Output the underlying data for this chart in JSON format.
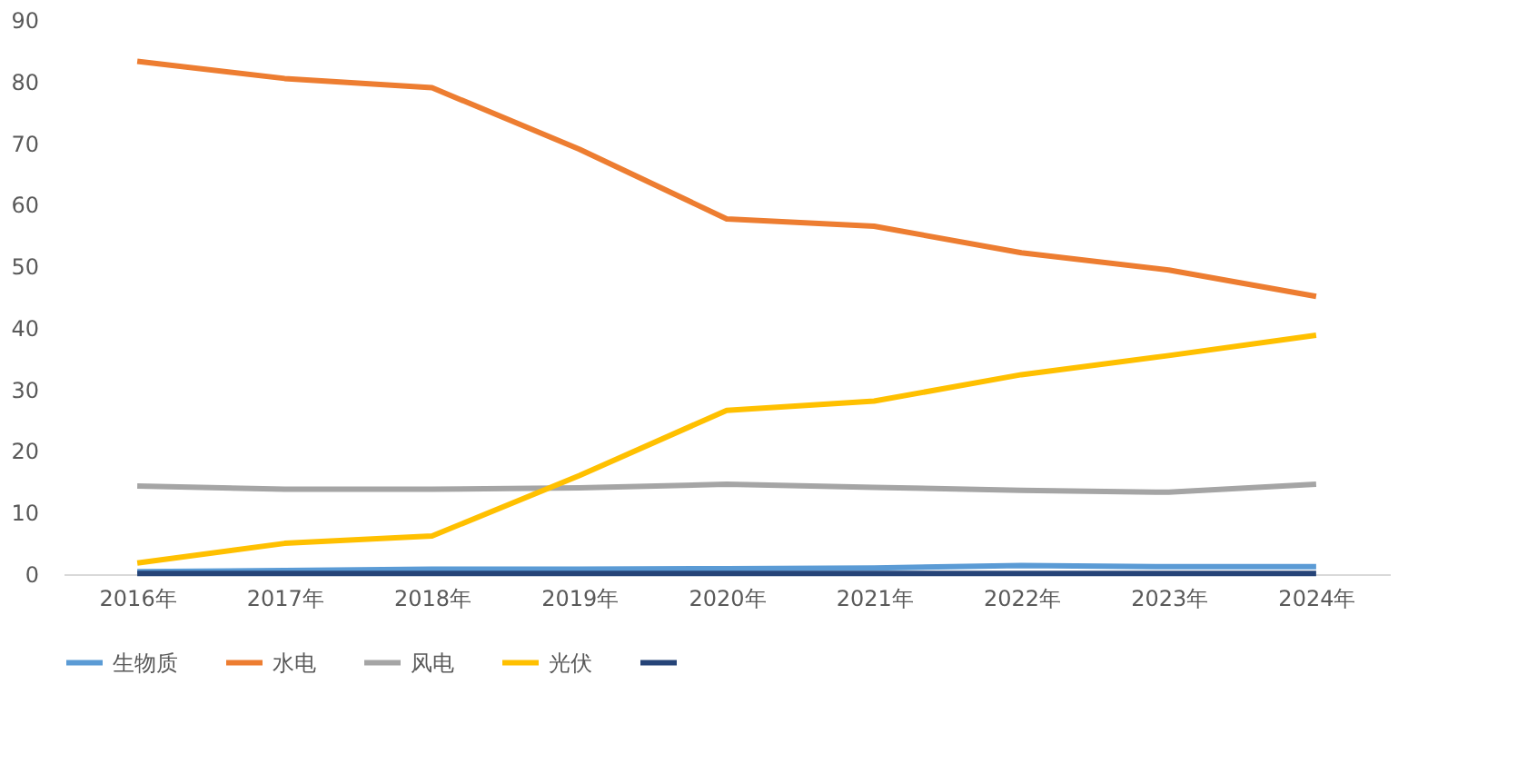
{
  "chart_data": {
    "type": "line",
    "categories": [
      "2016年",
      "2017年",
      "2018年",
      "2019年",
      "2020年",
      "2021年",
      "2022年",
      "2023年",
      "2024年"
    ],
    "series": [
      {
        "name": "生物质",
        "color": "#5b9bd5",
        "values": [
          0.4,
          0.6,
          0.8,
          0.8,
          0.9,
          1.0,
          1.4,
          1.2,
          1.2
        ]
      },
      {
        "name": "水电",
        "color": "#ed7d31",
        "values": [
          83.3,
          80.5,
          79.0,
          69.0,
          57.7,
          56.5,
          52.2,
          49.4,
          45.1
        ]
      },
      {
        "name": "风电",
        "color": "#a5a5a5",
        "values": [
          14.3,
          13.8,
          13.8,
          14.0,
          14.6,
          14.1,
          13.6,
          13.3,
          14.6
        ]
      },
      {
        "name": "光伏",
        "color": "#ffc000",
        "values": [
          1.8,
          5.0,
          6.2,
          16.0,
          26.6,
          28.1,
          32.4,
          35.5,
          38.8
        ]
      },
      {
        "color": "#264478",
        "values": [
          0.1,
          0.1,
          0.1,
          0.1,
          0.1,
          0.1,
          0.1,
          0.1,
          0.1
        ]
      }
    ],
    "ylim": [
      0,
      90
    ],
    "yticks": [
      0,
      10,
      20,
      30,
      40,
      50,
      60,
      70,
      80,
      90
    ],
    "grid": false,
    "legend": "bottom",
    "marker": "none",
    "line_style": "solid"
  }
}
